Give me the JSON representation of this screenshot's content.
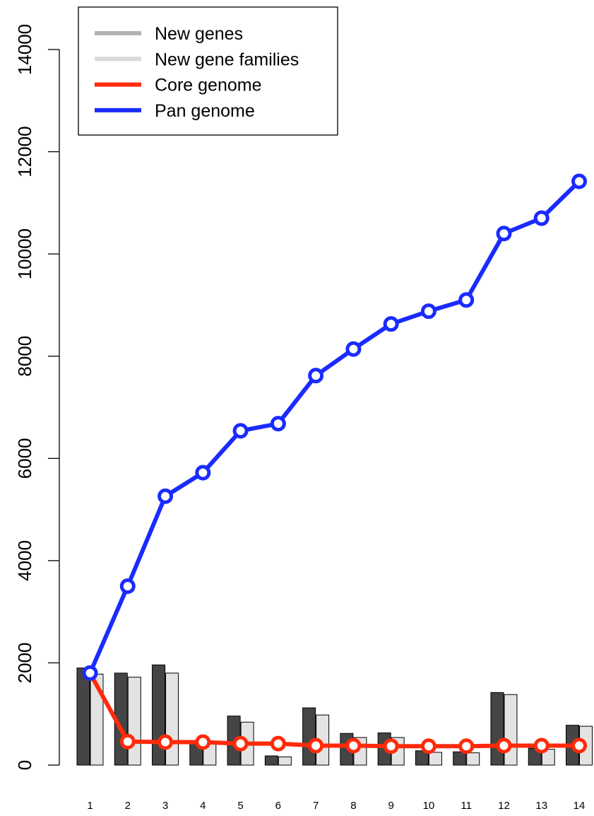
{
  "chart_data": {
    "type": "bar",
    "categories": [
      "1",
      "2",
      "3",
      "4",
      "5",
      "6",
      "7",
      "8",
      "9",
      "10",
      "11",
      "12",
      "13",
      "14"
    ],
    "ylim": [
      0,
      14000
    ],
    "yticks": [
      0,
      2000,
      4000,
      6000,
      8000,
      10000,
      12000,
      14000
    ],
    "ytick_labels": [
      "0",
      "2000",
      "4000",
      "6000",
      "8000",
      "10000",
      "12000",
      "14000"
    ],
    "xlabel": "",
    "ylabel": "",
    "title": "",
    "grid": false,
    "legend_position": "top-left",
    "bar_series": [
      {
        "name": "New genes",
        "color": "#454545",
        "legend_color": "#b3b3b3",
        "values": [
          1900,
          1800,
          1960,
          460,
          960,
          180,
          1120,
          620,
          630,
          280,
          260,
          1420,
          330,
          780
        ]
      },
      {
        "name": "New gene families",
        "color": "#e3e3e3",
        "legend_color": "#d9d9d9",
        "values": [
          1780,
          1720,
          1800,
          420,
          840,
          160,
          980,
          540,
          540,
          250,
          240,
          1380,
          310,
          760
        ]
      }
    ],
    "line_series": [
      {
        "name": "Core genome",
        "color": "#ff2a0a",
        "style": "dashed",
        "values": [
          1800,
          460,
          450,
          450,
          420,
          420,
          380,
          380,
          370,
          370,
          370,
          380,
          380,
          380
        ]
      },
      {
        "name": "Pan genome",
        "color": "#1a2bff",
        "style": "dashed",
        "values": [
          1800,
          3500,
          5260,
          5720,
          6540,
          6680,
          7620,
          8140,
          8630,
          8880,
          9100,
          10400,
          10700,
          11420
        ]
      }
    ]
  }
}
